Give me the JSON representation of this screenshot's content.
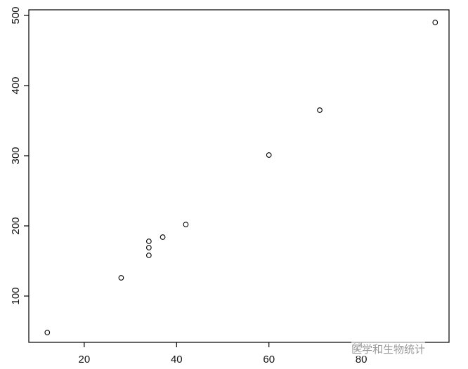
{
  "chart_data": {
    "type": "scatter",
    "title": "",
    "xlabel": "",
    "ylabel": "",
    "xlim": [
      8,
      99
    ],
    "ylim": [
      34,
      508
    ],
    "xticks": [
      20,
      40,
      60,
      80
    ],
    "yticks": [
      100,
      200,
      300,
      400,
      500
    ],
    "grid": false,
    "marker": "open-circle",
    "points": [
      {
        "x": 12,
        "y": 48
      },
      {
        "x": 28,
        "y": 126
      },
      {
        "x": 34,
        "y": 158
      },
      {
        "x": 34,
        "y": 169
      },
      {
        "x": 34,
        "y": 178
      },
      {
        "x": 37,
        "y": 184
      },
      {
        "x": 42,
        "y": 202
      },
      {
        "x": 60,
        "y": 301
      },
      {
        "x": 71,
        "y": 365
      },
      {
        "x": 96,
        "y": 490
      }
    ]
  },
  "watermark": {
    "text": "医学和生物统计",
    "icon": "wechat-icon"
  }
}
